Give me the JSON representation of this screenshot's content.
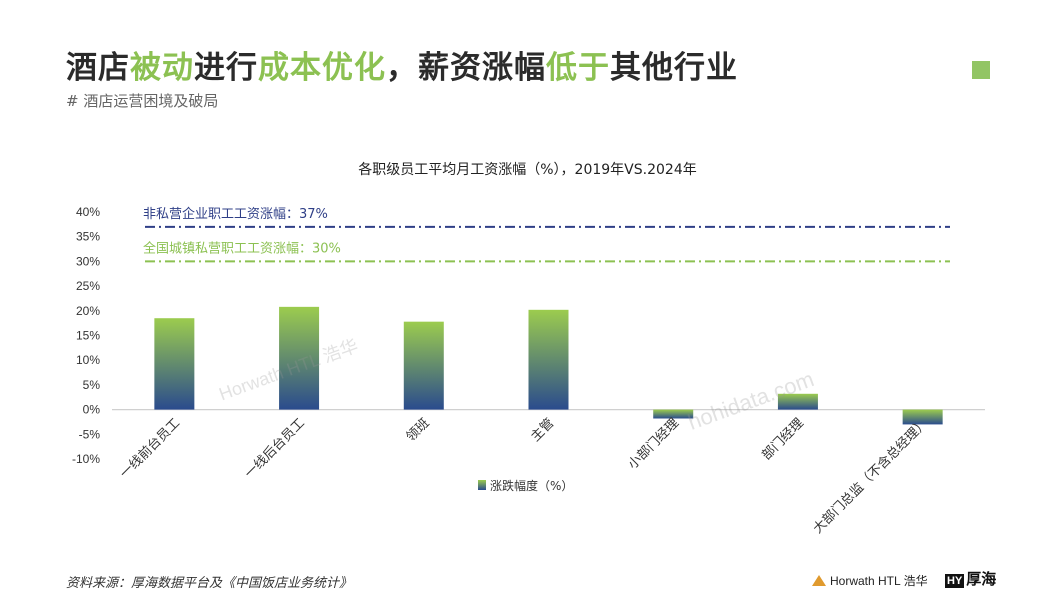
{
  "header": {
    "title_parts": [
      {
        "text": "酒店",
        "highlight": false
      },
      {
        "text": "被动",
        "highlight": true
      },
      {
        "text": "进行",
        "highlight": false
      },
      {
        "text": "成本优化",
        "highlight": true
      },
      {
        "text": "，薪资涨幅",
        "highlight": false
      },
      {
        "text": "低于",
        "highlight": true
      },
      {
        "text": "其他行业",
        "highlight": false
      }
    ],
    "subtitle": "# 酒店运营困境及破局"
  },
  "colors": {
    "highlight": "#8cc152",
    "bar_top": "#9ccc4e",
    "bar_bottom": "#2a4b8d",
    "ref_blue": "#2f3f87",
    "ref_green": "#8cc152"
  },
  "chart_data": {
    "type": "bar",
    "title": "各职级员工平均月工资涨幅（%），2019年VS.2024年",
    "categories": [
      "一线前台员工",
      "一线后台员工",
      "领班",
      "主管",
      "小部门经理",
      "部门经理",
      "大部门总监（不含总经理）"
    ],
    "series": [
      {
        "name": "涨跌幅度（%）",
        "values": [
          18.5,
          20.8,
          17.8,
          20.2,
          -1.8,
          3.2,
          -3.0
        ]
      }
    ],
    "ylim": [
      -10,
      40
    ],
    "yticks": [
      -10,
      -5,
      0,
      5,
      10,
      15,
      20,
      25,
      30,
      35,
      40
    ],
    "ytick_labels": [
      "-10%",
      "-5%",
      "0%",
      "5%",
      "10%",
      "15%",
      "20%",
      "25%",
      "30%",
      "35%",
      "40%"
    ],
    "reference_lines": [
      {
        "label": "非私营企业职工工资涨幅：37%",
        "value": 37,
        "color": "#2f3f87"
      },
      {
        "label": "全国城镇私营职工工资涨幅：30%",
        "value": 30,
        "color": "#8cc152"
      }
    ],
    "legend_position": "bottom-center",
    "grid": false
  },
  "footer": {
    "source": "资料来源：厚海数据平台及《中国饭店业务统计》",
    "logo_horwath": "Horwath HTL 浩华",
    "logo_hohi": "厚海"
  },
  "watermarks": [
    "Horwath HTL 浩华",
    "hohidata.com"
  ]
}
